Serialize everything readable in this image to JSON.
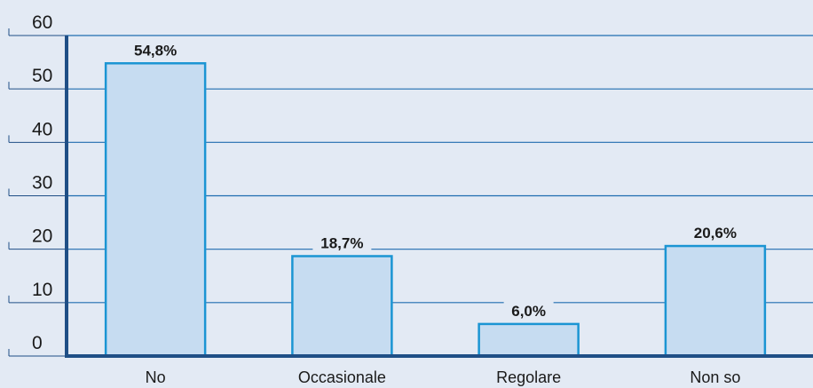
{
  "chart_data": {
    "type": "bar",
    "categories": [
      "No",
      "Occasionale",
      "Regolare",
      "Non so"
    ],
    "values": [
      54.8,
      18.7,
      6.0,
      20.6
    ],
    "data_labels": [
      "54,8%",
      "18,7%",
      "6,0%",
      "20,6%"
    ],
    "yticks": [
      "0",
      "10",
      "20",
      "30",
      "40",
      "50",
      "60"
    ],
    "ylim": [
      0,
      60
    ],
    "grid": true,
    "colors": {
      "background": "#e3eaf4",
      "bar_fill": "#c6dcf1",
      "bar_stroke": "#1b95d3",
      "axis": "#1f4f86",
      "grid": "#1f6db0"
    }
  }
}
